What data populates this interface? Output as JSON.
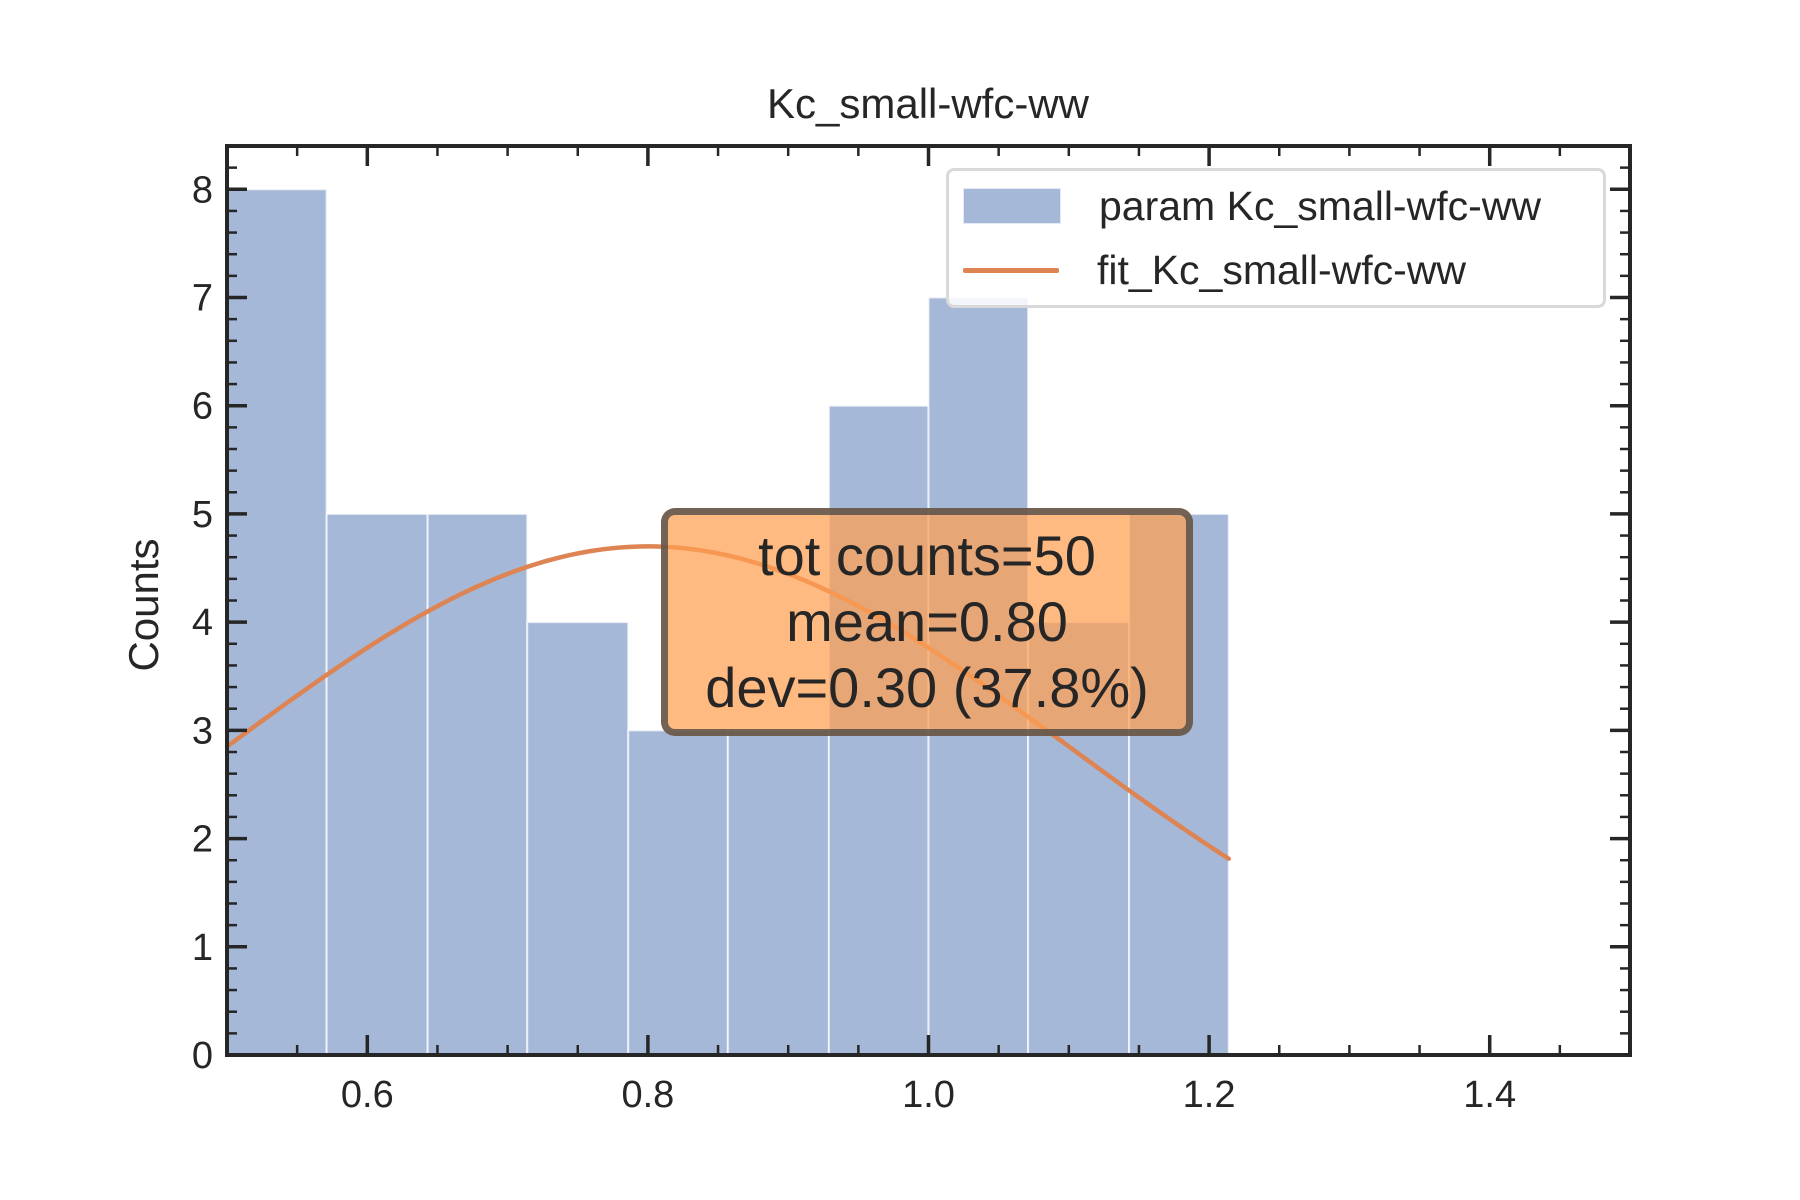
{
  "chart_data": {
    "type": "bar",
    "title": "Kc_small-wfc-ww",
    "xlabel": "",
    "ylabel": "Counts",
    "xlim": [
      0.5,
      1.5
    ],
    "ylim": [
      0,
      8.4
    ],
    "xticks": [
      "0.6",
      "0.8",
      "1.0",
      "1.2",
      "1.4"
    ],
    "yticks": [
      "0",
      "1",
      "2",
      "3",
      "4",
      "5",
      "6",
      "7",
      "8"
    ],
    "bins": [
      {
        "x0": 0.5,
        "x1": 0.571,
        "count": 8
      },
      {
        "x0": 0.571,
        "x1": 0.643,
        "count": 5
      },
      {
        "x0": 0.643,
        "x1": 0.714,
        "count": 5
      },
      {
        "x0": 0.714,
        "x1": 0.786,
        "count": 4
      },
      {
        "x0": 0.786,
        "x1": 0.857,
        "count": 3
      },
      {
        "x0": 0.857,
        "x1": 0.929,
        "count": 3
      },
      {
        "x0": 0.929,
        "x1": 1.0,
        "count": 6
      },
      {
        "x0": 1.0,
        "x1": 1.071,
        "count": 7
      },
      {
        "x0": 1.071,
        "x1": 1.143,
        "count": 4
      },
      {
        "x0": 1.143,
        "x1": 1.214,
        "count": 5
      }
    ],
    "fit": {
      "mean": 0.8,
      "sigma": 0.3,
      "peak": 4.7,
      "x_range": [
        0.5,
        1.214
      ]
    },
    "series": [
      {
        "name": "param Kc_small-wfc-ww",
        "kind": "histogram"
      },
      {
        "name": "fit_Kc_small-wfc-ww",
        "kind": "line"
      }
    ],
    "legend_position": "upper right",
    "grid": false,
    "annotation": [
      "tot counts=50",
      "mean=0.80",
      "dev=0.30 (37.8%)"
    ],
    "colors": {
      "bars": "#4c72b0",
      "fit": "#dd8452",
      "annotation_fill": "#ffa050"
    }
  }
}
